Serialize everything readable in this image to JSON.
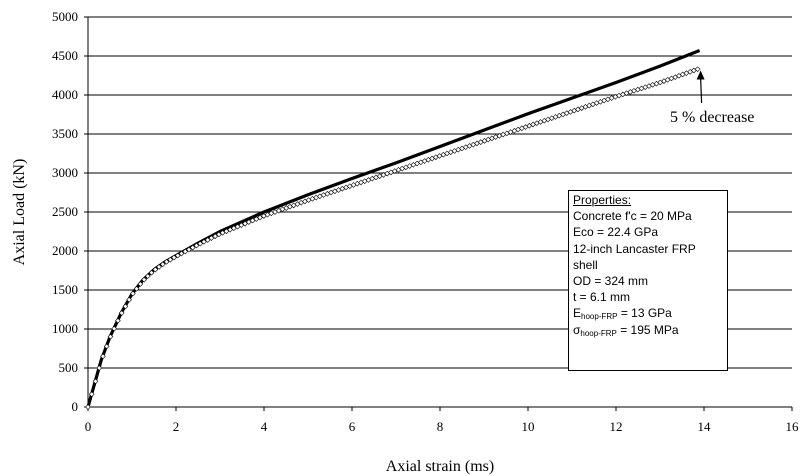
{
  "chart_data": {
    "type": "line",
    "xlabel": "Axial strain (ms)",
    "ylabel": "Axial Load (kN)",
    "xlim": [
      0,
      16
    ],
    "ylim": [
      0,
      5000
    ],
    "xticks": [
      0,
      2,
      4,
      6,
      8,
      10,
      12,
      14,
      16
    ],
    "yticks": [
      0,
      500,
      1000,
      1500,
      2000,
      2500,
      3000,
      3500,
      4000,
      4500,
      5000
    ],
    "grid": "horizontal",
    "series": [
      {
        "style": "solid-thick-black",
        "x": [
          0,
          0.15,
          0.3,
          0.5,
          0.75,
          1.0,
          1.25,
          1.5,
          1.75,
          2.0,
          2.5,
          3.0,
          4.0,
          5.0,
          6.0,
          7.0,
          8.0,
          9.0,
          10.0,
          11.0,
          12.0,
          13.0,
          13.9
        ],
        "y": [
          0,
          300,
          600,
          900,
          1200,
          1450,
          1630,
          1760,
          1860,
          1940,
          2100,
          2250,
          2500,
          2720,
          2930,
          3130,
          3340,
          3550,
          3760,
          3960,
          4160,
          4370,
          4570
        ]
      },
      {
        "style": "open-diamond-markers",
        "x": [
          0,
          0.15,
          0.3,
          0.5,
          0.75,
          1.0,
          1.25,
          1.5,
          1.75,
          2.0,
          2.5,
          3.0,
          4.0,
          5.0,
          6.0,
          7.0,
          8.0,
          9.0,
          10.0,
          11.0,
          12.0,
          13.0,
          13.9
        ],
        "y": [
          0,
          290,
          590,
          890,
          1190,
          1440,
          1620,
          1750,
          1850,
          1930,
          2080,
          2220,
          2450,
          2650,
          2840,
          3030,
          3220,
          3410,
          3600,
          3790,
          3980,
          4160,
          4340
        ]
      }
    ],
    "annotations": [
      {
        "text": "5 % decrease",
        "arrow_to": [
          13.9,
          4340
        ]
      }
    ],
    "properties_box": {
      "title": "Properties:",
      "lines": [
        "Concrete f'c = 20 MPa",
        "Eco = 22.4 GPa",
        "12-inch Lancaster FRP",
        "shell",
        "OD = 324 mm",
        "t = 6.1 mm"
      ],
      "ehoop": {
        "symbol": "E",
        "subscript": "hoop-FRP",
        "value": " = 13 GPa"
      },
      "sigma": {
        "symbol": "σ",
        "subscript": "hoop-FRP",
        "value": " = 195 MPa"
      }
    }
  }
}
